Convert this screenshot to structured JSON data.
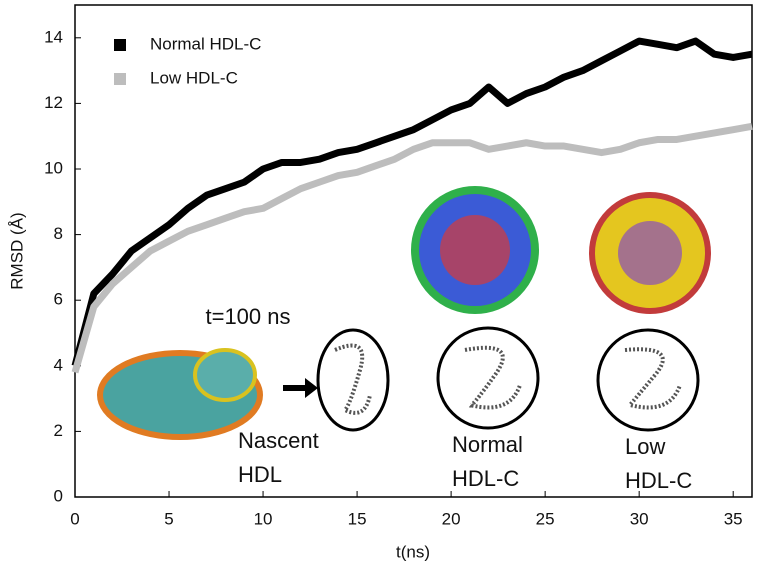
{
  "chart_data": {
    "type": "line",
    "x_label": "t(ns)",
    "y_label": "RMSD (Å)",
    "x": [
      0,
      1,
      2,
      3,
      4,
      5,
      6,
      7,
      8,
      9,
      10,
      11,
      12,
      13,
      14,
      15,
      16,
      17,
      18,
      19,
      20,
      21,
      22,
      23,
      24,
      25,
      26,
      27,
      28,
      29,
      30,
      31,
      32,
      33,
      34,
      35,
      36
    ],
    "series": [
      {
        "name": "Normal HDL-C",
        "color": "#000000",
        "values": [
          4.0,
          6.2,
          6.8,
          7.5,
          7.9,
          8.3,
          8.8,
          9.2,
          9.4,
          9.6,
          10.0,
          10.2,
          10.2,
          10.3,
          10.5,
          10.6,
          10.8,
          11.0,
          11.2,
          11.5,
          11.8,
          12.0,
          12.5,
          12.0,
          12.3,
          12.5,
          12.8,
          13.0,
          13.3,
          13.6,
          13.9,
          13.8,
          13.7,
          13.9,
          13.5,
          13.4,
          13.5
        ]
      },
      {
        "name": "Low HDL-C",
        "color": "#bdbdbd",
        "values": [
          3.8,
          5.8,
          6.5,
          7.0,
          7.5,
          7.8,
          8.1,
          8.3,
          8.5,
          8.7,
          8.8,
          9.1,
          9.4,
          9.6,
          9.8,
          9.9,
          10.1,
          10.3,
          10.6,
          10.8,
          10.8,
          10.8,
          10.6,
          10.7,
          10.8,
          10.7,
          10.7,
          10.6,
          10.5,
          10.6,
          10.8,
          10.9,
          10.9,
          11.0,
          11.1,
          11.2,
          11.3
        ]
      }
    ],
    "xlim": [
      0,
      36
    ],
    "xticks": [
      0,
      5,
      10,
      15,
      20,
      25,
      30,
      35
    ],
    "ylim": [
      0,
      15
    ],
    "yticks": [
      0,
      2,
      4,
      6,
      8,
      10,
      12,
      14
    ],
    "legend": "upper left",
    "annotations": [
      {
        "lines": [
          "t=100 ns"
        ]
      },
      {
        "lines": [
          "Nascent",
          "HDL"
        ]
      },
      {
        "lines": [
          "Normal",
          "HDL-C"
        ]
      },
      {
        "lines": [
          "Low",
          "HDL-C"
        ]
      }
    ]
  }
}
